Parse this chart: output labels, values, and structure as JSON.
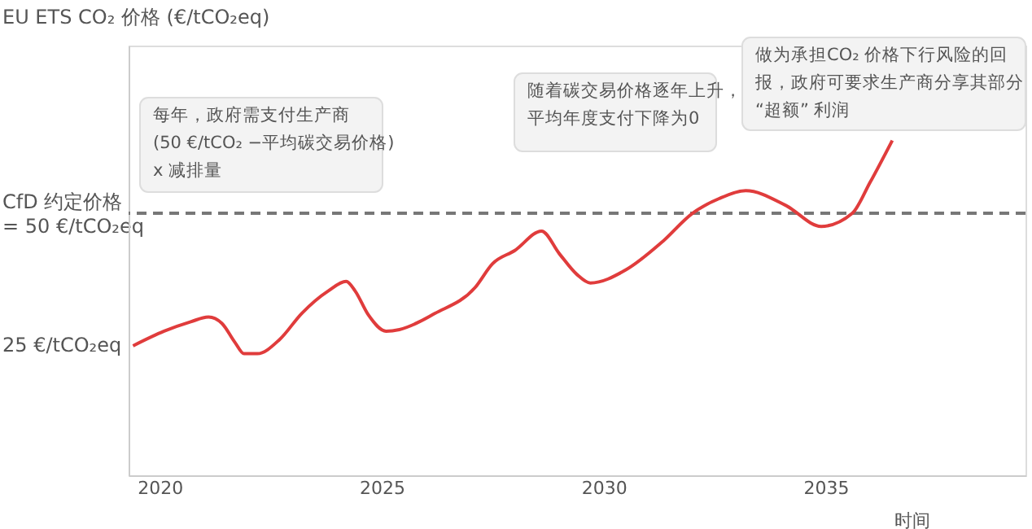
{
  "chart_data": {
    "type": "line",
    "ylabel": "EU ETS CO₂ 价格 (€/tCO₂eq)",
    "xlabel": "时间",
    "x": [
      2019.4,
      2020.1,
      2020.7,
      2021.1,
      2021.4,
      2021.7,
      2021.9,
      2022.2,
      2022.7,
      2023.2,
      2023.8,
      2024.2,
      2024.4,
      2024.7,
      2025.1,
      2025.4,
      2026.2,
      2027.1,
      2027.5,
      2028.0,
      2028.6,
      2029.0,
      2029.4,
      2029.7,
      2030.5,
      2031.3,
      2032.0,
      2032.6,
      2033.2,
      2034.1,
      2034.9,
      2035.6,
      2036.0,
      2036.5
    ],
    "series": [
      {
        "color": "#e03c3c",
        "values": [
          24.7,
          27.5,
          29.3,
          30.2,
          29.0,
          25.3,
          23.2,
          23.2,
          25.9,
          30.9,
          35.2,
          37.0,
          35.2,
          30.6,
          27.5,
          27.8,
          30.9,
          35.8,
          40.4,
          42.9,
          46.6,
          42.3,
          38.3,
          36.7,
          39.2,
          44.4,
          50.0,
          52.8,
          54.3,
          51.5,
          47.5,
          50.0,
          55.9,
          63.9
        ]
      }
    ],
    "xlim": [
      2019.3,
      2039.5
    ],
    "xticks": [
      2020,
      2025,
      2030,
      2035
    ],
    "ylim": [
      0,
      82
    ],
    "yticks": [
      {
        "value": 25,
        "label": "25 €/tCO₂eq"
      },
      {
        "value": 50,
        "label": "CfD 约定价格\n= 50 €/tCO₂eq"
      }
    ],
    "ref_lines": [
      {
        "axis": "y",
        "value": 50,
        "color": "#777777",
        "line_style": "dashed"
      }
    ],
    "annotations": [
      "每年，政府需支付生产商\n(50 €/tCO₂ −平均碳交易价格)\nx 减排量",
      "随着碳交易价格逐年上升，平均年度支付下降为0",
      "做为承担CO₂ 价格下行风险的回报，政府可要求生产商分享其部分“超额” 利润"
    ],
    "grid": false,
    "marker": "none",
    "line_style": "solid"
  }
}
